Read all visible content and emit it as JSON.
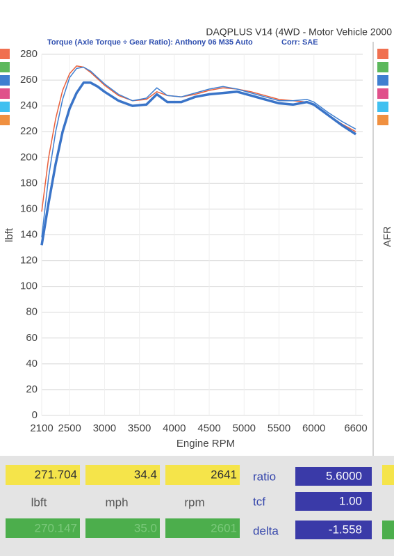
{
  "chart_data": {
    "type": "line",
    "title": "DAQPLUS V14 (4WD - Motor Vehicle 2000",
    "subtitle": "Torque (Axle Torque ÷ Gear Ratio): Anthony 06 M35 Auto",
    "correction": "Corr: SAE",
    "x_label": "Engine RPM",
    "y_label": "lbft",
    "y2_label": "AFR",
    "x": [
      2100,
      2200,
      2300,
      2400,
      2500,
      2600,
      2700,
      2800,
      2900,
      3000,
      3200,
      3400,
      3600,
      3750,
      3900,
      4100,
      4300,
      4500,
      4700,
      4900,
      5100,
      5300,
      5500,
      5700,
      5900,
      6000,
      6200,
      6400,
      6600
    ],
    "series": [
      {
        "color": "#e8603c",
        "width": 1.5,
        "values": [
          158,
          200,
          230,
          252,
          265,
          271,
          270,
          266,
          261,
          256,
          248,
          244,
          245,
          251,
          248,
          247,
          249,
          252,
          254,
          253,
          251,
          248,
          245,
          244,
          243,
          241,
          233,
          226,
          220
        ]
      },
      {
        "color": "#3f7fd0",
        "width": 1.5,
        "values": [
          138,
          185,
          220,
          245,
          262,
          269,
          270,
          267,
          262,
          257,
          249,
          244,
          246,
          254,
          248,
          247,
          250,
          253,
          255,
          253,
          250,
          247,
          244,
          244,
          245,
          243,
          235,
          228,
          222
        ]
      },
      {
        "color": "#3a74c8",
        "width": 3.5,
        "values": [
          132,
          165,
          195,
          220,
          238,
          250,
          258,
          258,
          255,
          251,
          244,
          240,
          241,
          249,
          243,
          243,
          247,
          249,
          250,
          251,
          248,
          245,
          242,
          241,
          243,
          241,
          233,
          225,
          218
        ]
      }
    ],
    "xlim": [
      2100,
      6600
    ],
    "xticks": [
      2100,
      2500,
      3000,
      3500,
      4000,
      4500,
      5000,
      5500,
      6000,
      6600
    ],
    "ylim": [
      0,
      280
    ],
    "yticks": [
      0,
      20,
      40,
      60,
      80,
      100,
      120,
      140,
      160,
      180,
      200,
      220,
      240,
      260,
      280
    ],
    "grid": true
  },
  "readouts": {
    "current": [
      "271.704",
      "34.4",
      "2641"
    ],
    "units": [
      "lbft",
      "mph",
      "rpm"
    ],
    "previous": [
      "270.147",
      "35.0",
      "2601"
    ],
    "params": [
      {
        "label": "ratio",
        "value": "5.6000"
      },
      {
        "label": "tcf",
        "value": "1.00"
      },
      {
        "label": "delta",
        "value": "-1.558"
      }
    ]
  }
}
